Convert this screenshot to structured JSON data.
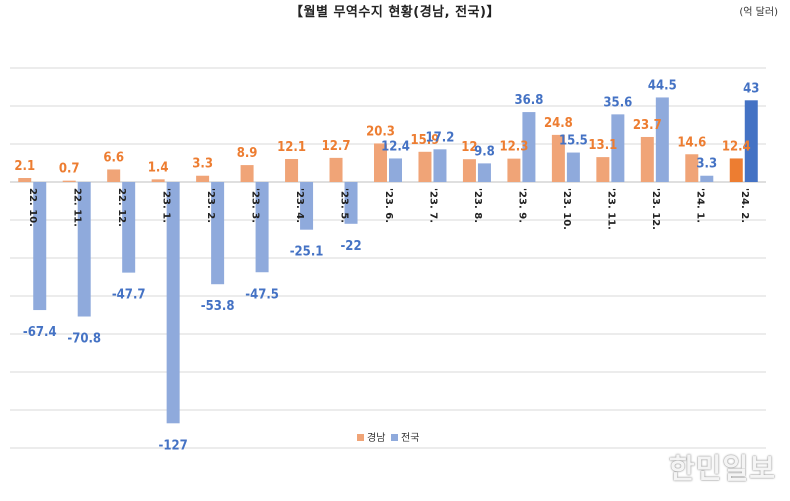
{
  "title": "【월별 무역수지 현황(경남, 전국)】",
  "unit": "(억 달러)",
  "watermark": "한민일보",
  "colors": {
    "gyeongnam": "#f0a477",
    "national": "#8faadc",
    "gyeongnam_label": "#ed7d31",
    "national_label": "#4472c4",
    "gyeongnam_highlight": "#ed7d31",
    "national_highlight": "#4472c4",
    "grid": "#d9d9d9"
  },
  "chart_data": {
    "type": "bar",
    "title": "월별 무역수지 현황(경남, 전국)",
    "ylabel": "",
    "ylim": [
      -140,
      60
    ],
    "grid": true,
    "legend": "bottom-center",
    "categories": [
      "22. 10.",
      "22. 11.",
      "22. 12.",
      "'23. 1.",
      "'23. 2.",
      "'23. 3.",
      "'23. 4.",
      "'23. 5.",
      "'23. 6.",
      "'23. 7.",
      "'23. 8.",
      "'23. 9.",
      "'23. 10.",
      "'23. 11.",
      "'23. 12.",
      "'24. 1.",
      "'24. 2."
    ],
    "series": [
      {
        "name": "경남",
        "values": [
          2.1,
          0.7,
          6.6,
          1.4,
          3.3,
          8.9,
          12.1,
          12.7,
          20.3,
          15.9,
          12,
          12.3,
          24.8,
          13.1,
          23.7,
          14.6,
          12.4
        ]
      },
      {
        "name": "전국",
        "values": [
          -67.4,
          -70.8,
          -47.7,
          -127,
          -53.8,
          -47.5,
          -25.1,
          -22,
          12.4,
          17.2,
          9.8,
          36.8,
          15.5,
          35.6,
          44.5,
          3.3,
          43
        ]
      }
    ],
    "highlight_index": 16
  }
}
